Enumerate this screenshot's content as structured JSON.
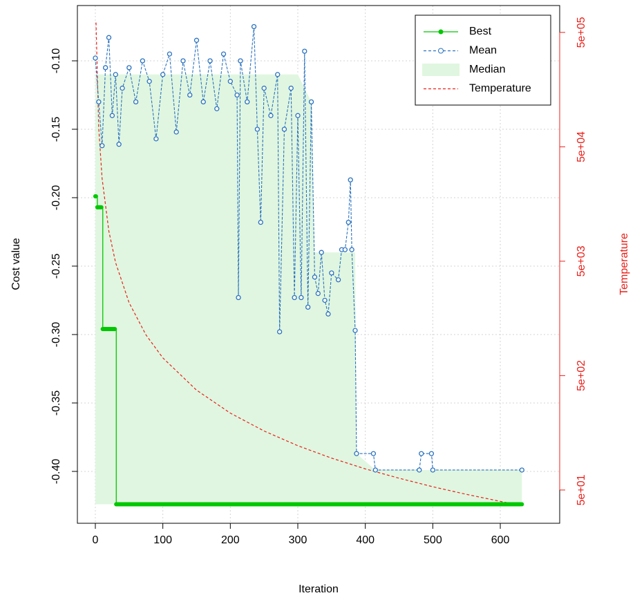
{
  "chart_data": {
    "type": "line",
    "x_label": "Iteration",
    "y_label": "Cost value",
    "y2_label": "Temperature",
    "xlim": [
      -26.6,
      688
    ],
    "xticks": [
      0,
      100,
      200,
      300,
      400,
      500,
      600
    ],
    "ylim": [
      -0.4379,
      -0.0596
    ],
    "yticks": [
      {
        "value": -0.1,
        "label": "-0.10"
      },
      -0.15,
      {
        "value": -0.2,
        "label": "-0.20"
      },
      -0.25,
      {
        "value": -0.3,
        "label": "-0.30"
      },
      -0.35,
      {
        "value": -0.4,
        "label": "-0.40"
      }
    ],
    "y2lim": [
      25.6,
      859000
    ],
    "y2log": true,
    "y2ticks": [
      {
        "value": 500000,
        "label": "5e+05"
      },
      {
        "value": 50000,
        "label": "5e+04"
      },
      {
        "value": 5000,
        "label": "5e+03"
      },
      {
        "value": 500,
        "label": "5e+02"
      },
      {
        "value": 50,
        "label": "5e+01"
      }
    ],
    "grid": true,
    "legend": "top-right",
    "series": [
      {
        "name": "Best",
        "color": "#00c800",
        "kind": "step",
        "x": [
          0,
          3,
          11,
          31,
          632
        ],
        "values": [
          -0.199,
          -0.207,
          -0.296,
          -0.424,
          -0.424
        ]
      },
      {
        "name": "Mean",
        "color": "#2a72c0",
        "kind": "dashed-points",
        "x": [
          0,
          5,
          10,
          15,
          20,
          25,
          30,
          35,
          40,
          50,
          60,
          70,
          80,
          90,
          100,
          110,
          120,
          130,
          140,
          150,
          160,
          170,
          180,
          190,
          200,
          210,
          212,
          215,
          225,
          235,
          240,
          245,
          250,
          260,
          270,
          273,
          280,
          290,
          295,
          300,
          305,
          310,
          315,
          320,
          325,
          330,
          335,
          340,
          345,
          350,
          360,
          365,
          370,
          375,
          378,
          380,
          385,
          387,
          412,
          415,
          480,
          483,
          498,
          500,
          632
        ],
        "values": [
          -0.098,
          -0.13,
          -0.162,
          -0.105,
          -0.083,
          -0.14,
          -0.11,
          -0.161,
          -0.12,
          -0.105,
          -0.13,
          -0.1,
          -0.115,
          -0.157,
          -0.11,
          -0.095,
          -0.152,
          -0.1,
          -0.125,
          -0.085,
          -0.13,
          -0.1,
          -0.135,
          -0.095,
          -0.115,
          -0.125,
          -0.273,
          -0.1,
          -0.13,
          -0.075,
          -0.15,
          -0.218,
          -0.12,
          -0.14,
          -0.11,
          -0.298,
          -0.15,
          -0.12,
          -0.273,
          -0.14,
          -0.273,
          -0.093,
          -0.28,
          -0.13,
          -0.258,
          -0.27,
          -0.24,
          -0.275,
          -0.285,
          -0.255,
          -0.26,
          -0.238,
          -0.238,
          -0.218,
          -0.187,
          -0.238,
          -0.297,
          -0.387,
          -0.387,
          -0.399,
          -0.399,
          -0.387,
          -0.387,
          -0.399,
          -0.399
        ]
      },
      {
        "name": "Median",
        "color": "#e0f6e0",
        "kind": "area",
        "x": [
          0,
          100,
          200,
          300,
          320,
          325,
          385,
          387,
          415,
          632
        ],
        "values": [
          -0.11,
          -0.11,
          -0.11,
          -0.11,
          -0.13,
          -0.24,
          -0.24,
          -0.387,
          -0.399,
          -0.399
        ]
      },
      {
        "name": "Temperature",
        "color": "#e8201a",
        "kind": "dashed",
        "axis": "y2",
        "x": [
          1,
          5,
          10,
          20,
          30,
          50,
          75,
          100,
          150,
          200,
          250,
          300,
          350,
          400,
          450,
          500,
          550,
          600,
          632
        ],
        "values": [
          610000,
          73400,
          26500,
          9170,
          4860,
          2170,
          1135,
          714,
          373,
          235,
          164,
          122,
          95,
          76.5,
          63.4,
          53.4,
          45.8,
          39.8,
          36.6
        ]
      }
    ]
  }
}
